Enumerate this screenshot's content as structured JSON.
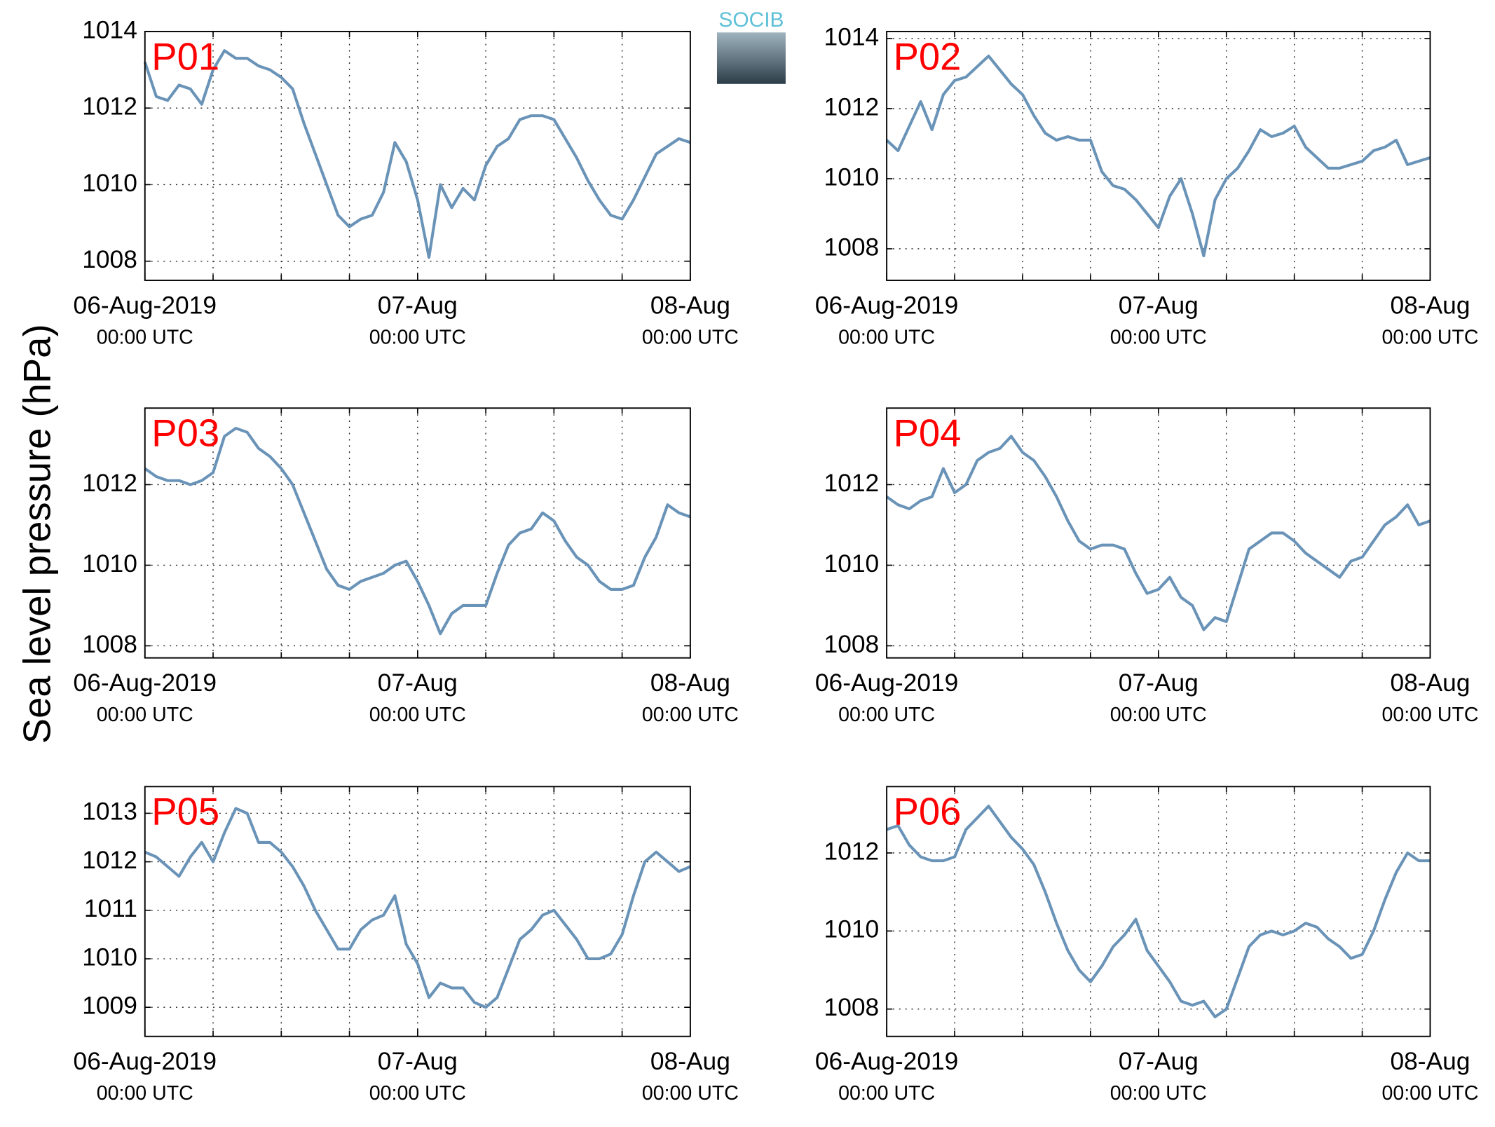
{
  "ylabel": "Sea level pressure (hPa)",
  "logo": "SOCIB",
  "chart_data": [
    {
      "type": "line",
      "title": "P01",
      "color": "#6a93b8",
      "grid": true,
      "x": [
        0,
        1,
        2,
        3,
        4,
        5,
        6,
        7,
        8,
        9,
        10,
        11,
        12,
        13,
        14,
        15,
        16,
        17,
        18,
        19,
        20,
        21,
        22,
        23,
        24,
        25,
        26,
        27,
        28,
        29,
        30,
        31,
        32,
        33,
        34,
        35,
        36,
        37,
        38,
        39,
        40,
        41,
        42,
        43,
        44,
        45,
        46,
        47,
        48
      ],
      "values": [
        1013.2,
        1012.3,
        1012.2,
        1012.6,
        1012.5,
        1012.1,
        1013.0,
        1013.5,
        1013.3,
        1013.3,
        1013.1,
        1013.0,
        1012.8,
        1012.5,
        1011.6,
        1010.8,
        1010.0,
        1009.2,
        1008.9,
        1009.1,
        1009.2,
        1009.8,
        1011.1,
        1010.6,
        1009.6,
        1008.1,
        1010.0,
        1009.4,
        1009.9,
        1009.6,
        1010.5,
        1011.0,
        1011.2,
        1011.7,
        1011.8,
        1011.8,
        1011.7,
        1011.2,
        1010.7,
        1010.1,
        1009.6,
        1009.2,
        1009.1,
        1009.6,
        1010.2,
        1010.8,
        1011.0,
        1011.2,
        1011.1
      ],
      "xlim": [
        0,
        48
      ],
      "xgrid": [
        6,
        12,
        18,
        24,
        30,
        36,
        42
      ],
      "xticks": [
        {
          "value": 0,
          "label": "06-Aug-2019",
          "sublabel": "00:00 UTC"
        },
        {
          "value": 24,
          "label": "07-Aug",
          "sublabel": "00:00 UTC"
        },
        {
          "value": 48,
          "label": "08-Aug",
          "sublabel": "00:00 UTC"
        }
      ],
      "ylim": [
        1007.5,
        1014.0
      ],
      "yticks": [
        1008,
        1010,
        1012,
        1014
      ]
    },
    {
      "type": "line",
      "title": "P02",
      "color": "#6a93b8",
      "grid": true,
      "x": [
        0,
        1,
        2,
        3,
        4,
        5,
        6,
        7,
        8,
        9,
        10,
        11,
        12,
        13,
        14,
        15,
        16,
        17,
        18,
        19,
        20,
        21,
        22,
        23,
        24,
        25,
        26,
        27,
        28,
        29,
        30,
        31,
        32,
        33,
        34,
        35,
        36,
        37,
        38,
        39,
        40,
        41,
        42,
        43,
        44,
        45,
        46,
        47,
        48
      ],
      "values": [
        1011.1,
        1010.8,
        1011.5,
        1012.2,
        1011.4,
        1012.4,
        1012.8,
        1012.9,
        1013.2,
        1013.5,
        1013.1,
        1012.7,
        1012.4,
        1011.8,
        1011.3,
        1011.1,
        1011.2,
        1011.1,
        1011.1,
        1010.2,
        1009.8,
        1009.7,
        1009.4,
        1009.0,
        1008.6,
        1009.5,
        1010.0,
        1009.0,
        1007.8,
        1009.4,
        1010.0,
        1010.3,
        1010.8,
        1011.4,
        1011.2,
        1011.3,
        1011.5,
        1010.9,
        1010.6,
        1010.3,
        1010.3,
        1010.4,
        1010.5,
        1010.8,
        1010.9,
        1011.1,
        1010.4,
        1010.5,
        1010.6
      ],
      "xlim": [
        0,
        48
      ],
      "xgrid": [
        6,
        12,
        18,
        24,
        30,
        36,
        42
      ],
      "xticks": [
        {
          "value": 0,
          "label": "06-Aug-2019",
          "sublabel": "00:00 UTC"
        },
        {
          "value": 24,
          "label": "07-Aug",
          "sublabel": "00:00 UTC"
        },
        {
          "value": 48,
          "label": "08-Aug",
          "sublabel": "00:00 UTC"
        }
      ],
      "ylim": [
        1007.1,
        1014.2
      ],
      "yticks": [
        1008,
        1010,
        1012,
        1014
      ]
    },
    {
      "type": "line",
      "title": "P03",
      "color": "#6a93b8",
      "grid": true,
      "x": [
        0,
        1,
        2,
        3,
        4,
        5,
        6,
        7,
        8,
        9,
        10,
        11,
        12,
        13,
        14,
        15,
        16,
        17,
        18,
        19,
        20,
        21,
        22,
        23,
        24,
        25,
        26,
        27,
        28,
        29,
        30,
        31,
        32,
        33,
        34,
        35,
        36,
        37,
        38,
        39,
        40,
        41,
        42,
        43,
        44,
        45,
        46,
        47,
        48
      ],
      "values": [
        1012.4,
        1012.2,
        1012.1,
        1012.1,
        1012.0,
        1012.1,
        1012.3,
        1013.2,
        1013.4,
        1013.3,
        1012.9,
        1012.7,
        1012.4,
        1012.0,
        1011.3,
        1010.6,
        1009.9,
        1009.5,
        1009.4,
        1009.6,
        1009.7,
        1009.8,
        1010.0,
        1010.1,
        1009.6,
        1009.0,
        1008.3,
        1008.8,
        1009.0,
        1009.0,
        1009.0,
        1009.8,
        1010.5,
        1010.8,
        1010.9,
        1011.3,
        1011.1,
        1010.6,
        1010.2,
        1010.0,
        1009.6,
        1009.4,
        1009.4,
        1009.5,
        1010.2,
        1010.7,
        1011.5,
        1011.3,
        1011.2
      ],
      "xlim": [
        0,
        48
      ],
      "xgrid": [
        6,
        12,
        18,
        24,
        30,
        36,
        42
      ],
      "xticks": [
        {
          "value": 0,
          "label": "06-Aug-2019",
          "sublabel": "00:00 UTC"
        },
        {
          "value": 24,
          "label": "07-Aug",
          "sublabel": "00:00 UTC"
        },
        {
          "value": 48,
          "label": "08-Aug",
          "sublabel": "00:00 UTC"
        }
      ],
      "ylim": [
        1007.7,
        1013.9
      ],
      "yticks": [
        1008,
        1010,
        1012
      ]
    },
    {
      "type": "line",
      "title": "P04",
      "color": "#6a93b8",
      "grid": true,
      "x": [
        0,
        1,
        2,
        3,
        4,
        5,
        6,
        7,
        8,
        9,
        10,
        11,
        12,
        13,
        14,
        15,
        16,
        17,
        18,
        19,
        20,
        21,
        22,
        23,
        24,
        25,
        26,
        27,
        28,
        29,
        30,
        31,
        32,
        33,
        34,
        35,
        36,
        37,
        38,
        39,
        40,
        41,
        42,
        43,
        44,
        45,
        46,
        47,
        48
      ],
      "values": [
        1011.7,
        1011.5,
        1011.4,
        1011.6,
        1011.7,
        1012.4,
        1011.8,
        1012.0,
        1012.6,
        1012.8,
        1012.9,
        1013.2,
        1012.8,
        1012.6,
        1012.2,
        1011.7,
        1011.1,
        1010.6,
        1010.4,
        1010.5,
        1010.5,
        1010.4,
        1009.8,
        1009.3,
        1009.4,
        1009.7,
        1009.2,
        1009.0,
        1008.4,
        1008.7,
        1008.6,
        1009.5,
        1010.4,
        1010.6,
        1010.8,
        1010.8,
        1010.6,
        1010.3,
        1010.1,
        1009.9,
        1009.7,
        1010.1,
        1010.2,
        1010.6,
        1011.0,
        1011.2,
        1011.5,
        1011.0,
        1011.1
      ],
      "xlim": [
        0,
        48
      ],
      "xgrid": [
        6,
        12,
        18,
        24,
        30,
        36,
        42
      ],
      "xticks": [
        {
          "value": 0,
          "label": "06-Aug-2019",
          "sublabel": "00:00 UTC"
        },
        {
          "value": 24,
          "label": "07-Aug",
          "sublabel": "00:00 UTC"
        },
        {
          "value": 48,
          "label": "08-Aug",
          "sublabel": "00:00 UTC"
        }
      ],
      "ylim": [
        1007.7,
        1013.9
      ],
      "yticks": [
        1008,
        1010,
        1012
      ]
    },
    {
      "type": "line",
      "title": "P05",
      "color": "#6a93b8",
      "grid": true,
      "x": [
        0,
        1,
        2,
        3,
        4,
        5,
        6,
        7,
        8,
        9,
        10,
        11,
        12,
        13,
        14,
        15,
        16,
        17,
        18,
        19,
        20,
        21,
        22,
        23,
        24,
        25,
        26,
        27,
        28,
        29,
        30,
        31,
        32,
        33,
        34,
        35,
        36,
        37,
        38,
        39,
        40,
        41,
        42,
        43,
        44,
        45,
        46,
        47,
        48
      ],
      "values": [
        1012.2,
        1012.1,
        1011.9,
        1011.7,
        1012.1,
        1012.4,
        1012.0,
        1012.6,
        1013.1,
        1013.0,
        1012.4,
        1012.4,
        1012.2,
        1011.9,
        1011.5,
        1011.0,
        1010.6,
        1010.2,
        1010.2,
        1010.6,
        1010.8,
        1010.9,
        1011.3,
        1010.3,
        1009.9,
        1009.2,
        1009.5,
        1009.4,
        1009.4,
        1009.1,
        1009.0,
        1009.2,
        1009.8,
        1010.4,
        1010.6,
        1010.9,
        1011.0,
        1010.7,
        1010.4,
        1010.0,
        1010.0,
        1010.1,
        1010.5,
        1011.3,
        1012.0,
        1012.2,
        1012.0,
        1011.8,
        1011.9
      ],
      "xlim": [
        0,
        48
      ],
      "xgrid": [
        6,
        12,
        18,
        24,
        30,
        36,
        42
      ],
      "xticks": [
        {
          "value": 0,
          "label": "06-Aug-2019",
          "sublabel": "00:00 UTC"
        },
        {
          "value": 24,
          "label": "07-Aug",
          "sublabel": "00:00 UTC"
        },
        {
          "value": 48,
          "label": "08-Aug",
          "sublabel": "00:00 UTC"
        }
      ],
      "ylim": [
        1008.4,
        1013.55
      ],
      "yticks": [
        1009,
        1010,
        1011,
        1012,
        1013
      ]
    },
    {
      "type": "line",
      "title": "P06",
      "color": "#6a93b8",
      "grid": true,
      "x": [
        0,
        1,
        2,
        3,
        4,
        5,
        6,
        7,
        8,
        9,
        10,
        11,
        12,
        13,
        14,
        15,
        16,
        17,
        18,
        19,
        20,
        21,
        22,
        23,
        24,
        25,
        26,
        27,
        28,
        29,
        30,
        31,
        32,
        33,
        34,
        35,
        36,
        37,
        38,
        39,
        40,
        41,
        42,
        43,
        44,
        45,
        46,
        47,
        48
      ],
      "values": [
        1012.6,
        1012.7,
        1012.2,
        1011.9,
        1011.8,
        1011.8,
        1011.9,
        1012.6,
        1012.9,
        1013.2,
        1012.8,
        1012.4,
        1012.1,
        1011.7,
        1011.0,
        1010.2,
        1009.5,
        1009.0,
        1008.7,
        1009.1,
        1009.6,
        1009.9,
        1010.3,
        1009.5,
        1009.1,
        1008.7,
        1008.2,
        1008.1,
        1008.2,
        1007.8,
        1008.0,
        1008.8,
        1009.6,
        1009.9,
        1010.0,
        1009.9,
        1010.0,
        1010.2,
        1010.1,
        1009.8,
        1009.6,
        1009.3,
        1009.4,
        1010.0,
        1010.8,
        1011.5,
        1012.0,
        1011.8,
        1011.8
      ],
      "xlim": [
        0,
        48
      ],
      "xgrid": [
        6,
        12,
        18,
        24,
        30,
        36,
        42
      ],
      "xticks": [
        {
          "value": 0,
          "label": "06-Aug-2019",
          "sublabel": "00:00 UTC"
        },
        {
          "value": 24,
          "label": "07-Aug",
          "sublabel": "00:00 UTC"
        },
        {
          "value": 48,
          "label": "08-Aug",
          "sublabel": "00:00 UTC"
        }
      ],
      "ylim": [
        1007.3,
        1013.7
      ],
      "yticks": [
        1008,
        1010,
        1012
      ]
    }
  ]
}
